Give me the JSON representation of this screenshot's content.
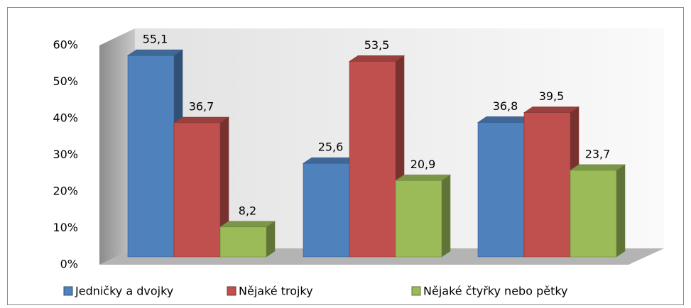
{
  "chart_data": {
    "type": "bar3d",
    "categories": [
      null,
      null,
      null
    ],
    "series": [
      {
        "name": "Jedničky a dvojky",
        "color": "#4f81bd",
        "values": [
          55.1,
          25.6,
          36.8
        ],
        "value_labels": [
          "55,1",
          "25,6",
          "36,8"
        ]
      },
      {
        "name": "Nějaké trojky",
        "color": "#c0504d",
        "values": [
          36.7,
          53.5,
          39.5
        ],
        "value_labels": [
          "36,7",
          "53,5",
          "39,5"
        ]
      },
      {
        "name": "Nějaké čtyřky nebo pětky",
        "color": "#9bbb59",
        "values": [
          8.2,
          20.9,
          23.7
        ],
        "value_labels": [
          "8,2",
          "20,9",
          "23,7"
        ]
      }
    ],
    "ylim": [
      0,
      60
    ],
    "yticks": [
      {
        "value": 0,
        "label": "0%"
      },
      {
        "value": 10,
        "label": "10%"
      },
      {
        "value": 20,
        "label": "20%"
      },
      {
        "value": 30,
        "label": "30%"
      },
      {
        "value": 40,
        "label": "40%"
      },
      {
        "value": 50,
        "label": "50%"
      },
      {
        "value": 60,
        "label": "60%"
      }
    ],
    "legend": "bottom"
  }
}
